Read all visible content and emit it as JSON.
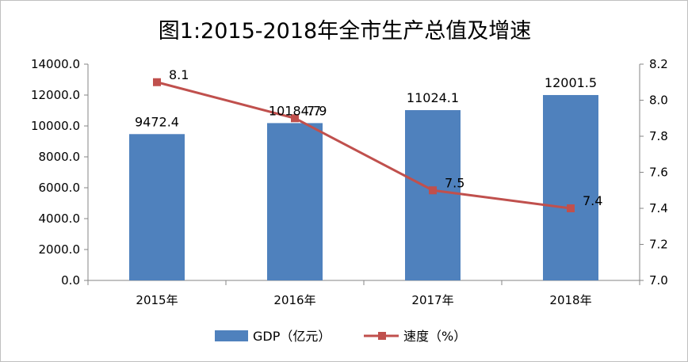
{
  "chart_data": {
    "type": "bar",
    "title": "图1:2015-2018年全市生产总值及增速",
    "categories": [
      "2015年",
      "2016年",
      "2017年",
      "2018年"
    ],
    "series": [
      {
        "name": "GDP（亿元）",
        "type": "bar",
        "axis": "left",
        "values": [
          9472.4,
          10184.7,
          11024.1,
          12001.5
        ],
        "labels": [
          "9472.4",
          "10184.7",
          "11024.1",
          "12001.5"
        ],
        "color": "#4f81bd"
      },
      {
        "name": "速度（%）",
        "type": "line",
        "axis": "right",
        "values": [
          8.1,
          7.9,
          7.5,
          7.4
        ],
        "labels": [
          "8.1",
          "7.9",
          "7.5",
          "7.4"
        ],
        "color": "#c0504d"
      }
    ],
    "y_left": {
      "range": [
        0,
        14000
      ],
      "ticks": [
        "0.0",
        "2000.0",
        "4000.0",
        "6000.0",
        "8000.0",
        "10000.0",
        "12000.0",
        "14000.0"
      ]
    },
    "y_right": {
      "range": [
        7.0,
        8.2
      ],
      "ticks": [
        "7.0",
        "7.2",
        "7.4",
        "7.6",
        "7.8",
        "8.0",
        "8.2"
      ]
    },
    "grid": false,
    "legend_position": "bottom"
  }
}
